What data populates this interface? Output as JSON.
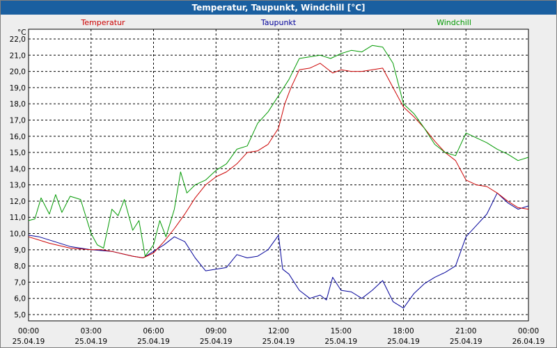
{
  "window": {
    "title": "Temperatur, Taupunkt, Windchill [°C]"
  },
  "chart_data": {
    "type": "line",
    "title": "Temperatur, Taupunkt, Windchill [°C]",
    "ylabel": "°C",
    "ylim": [
      5.0,
      22.0
    ],
    "xlim": [
      0,
      24
    ],
    "grid": true,
    "y_ticks": [
      "22,0",
      "21,0",
      "20,0",
      "19,0",
      "18,0",
      "17,0",
      "16,0",
      "15,0",
      "14,0",
      "13,0",
      "12,0",
      "11,0",
      "10,0",
      "9,0",
      "8,0",
      "7,0",
      "6,0",
      "5,0"
    ],
    "x_ticks": [
      {
        "time": "00:00",
        "date": "25.04.19"
      },
      {
        "time": "03:00",
        "date": "25.04.19"
      },
      {
        "time": "06:00",
        "date": "25.04.19"
      },
      {
        "time": "09:00",
        "date": "25.04.19"
      },
      {
        "time": "12:00",
        "date": "25.04.19"
      },
      {
        "time": "15:00",
        "date": "25.04.19"
      },
      {
        "time": "18:00",
        "date": "25.04.19"
      },
      {
        "time": "21:00",
        "date": "25.04.19"
      },
      {
        "time": "00:00",
        "date": "26.04.19"
      }
    ],
    "series": [
      {
        "name": "Temperatur",
        "color": "#cc0000",
        "x": [
          0,
          1,
          2,
          3,
          3.5,
          4,
          5,
          5.5,
          6,
          6.5,
          7,
          7.5,
          8,
          8.5,
          9,
          9.5,
          10,
          10.5,
          11,
          11.5,
          12,
          12.3,
          12.6,
          13,
          13.5,
          14,
          14.3,
          14.6,
          15,
          15.5,
          16,
          16.5,
          17,
          17.5,
          18,
          18.5,
          19,
          19.5,
          20,
          20.5,
          21,
          21.5,
          22,
          22.5,
          23,
          23.5,
          24
        ],
        "values": [
          9.8,
          9.4,
          9.1,
          9.0,
          9.0,
          8.9,
          8.6,
          8.5,
          8.8,
          9.5,
          10.3,
          11.2,
          12.2,
          13.0,
          13.5,
          13.8,
          14.3,
          15.0,
          15.1,
          15.5,
          16.5,
          18.0,
          19.0,
          20.1,
          20.2,
          20.5,
          20.2,
          19.9,
          20.1,
          20.0,
          20.0,
          20.1,
          20.2,
          19.0,
          17.8,
          17.2,
          16.5,
          15.7,
          15.0,
          14.5,
          13.3,
          13.0,
          12.9,
          12.5,
          12.0,
          11.6,
          11.5
        ]
      },
      {
        "name": "Taupunkt",
        "color": "#000099",
        "x": [
          0,
          0.5,
          1,
          2,
          3,
          4,
          5,
          5.5,
          6,
          6.5,
          7,
          7.5,
          8,
          8.5,
          9,
          9.5,
          10,
          10.5,
          11,
          11.5,
          12,
          12.2,
          12.5,
          13,
          13.5,
          14,
          14.3,
          14.6,
          15,
          15.5,
          16,
          16.5,
          17,
          17.5,
          18,
          18.5,
          19,
          19.5,
          20,
          20.5,
          21,
          21.5,
          22,
          22.5,
          23,
          23.5,
          24
        ],
        "values": [
          9.9,
          9.8,
          9.6,
          9.2,
          9.0,
          8.9,
          8.6,
          8.5,
          8.9,
          9.3,
          9.8,
          9.5,
          8.5,
          7.7,
          7.8,
          7.9,
          8.7,
          8.5,
          8.6,
          9.0,
          9.9,
          7.8,
          7.5,
          6.5,
          6.0,
          6.2,
          5.9,
          7.3,
          6.5,
          6.4,
          6.0,
          6.5,
          7.1,
          5.8,
          5.4,
          6.3,
          6.9,
          7.3,
          7.6,
          8.0,
          9.8,
          10.5,
          11.2,
          12.5,
          11.9,
          11.5,
          11.7
        ]
      },
      {
        "name": "Windchill",
        "color": "#009900",
        "x": [
          0,
          0.3,
          0.6,
          1,
          1.3,
          1.6,
          2,
          2.5,
          3,
          3.3,
          3.6,
          4,
          4.3,
          4.6,
          5,
          5.3,
          5.6,
          6,
          6.3,
          6.6,
          7,
          7.3,
          7.6,
          8,
          8.5,
          9,
          9.5,
          10,
          10.5,
          11,
          11.5,
          12,
          12.5,
          13,
          13.5,
          14,
          14.5,
          15,
          15.5,
          16,
          16.5,
          17,
          17.5,
          18,
          18.5,
          19,
          19.5,
          20,
          20.5,
          21,
          21.5,
          22,
          22.5,
          23,
          23.5,
          24
        ],
        "values": [
          10.8,
          10.9,
          12.2,
          11.2,
          12.4,
          11.3,
          12.3,
          12.1,
          10.0,
          9.3,
          9.1,
          11.5,
          11.1,
          12.1,
          10.2,
          10.8,
          8.6,
          9.3,
          10.8,
          9.8,
          11.5,
          13.8,
          12.5,
          13.0,
          13.3,
          13.9,
          14.3,
          15.2,
          15.4,
          16.8,
          17.5,
          18.5,
          19.5,
          20.8,
          20.9,
          21.0,
          20.8,
          21.1,
          21.3,
          21.2,
          21.6,
          21.5,
          20.5,
          18.0,
          17.4,
          16.5,
          15.5,
          15.0,
          14.8,
          16.2,
          15.9,
          15.6,
          15.2,
          14.9,
          14.5,
          14.7
        ]
      }
    ]
  }
}
